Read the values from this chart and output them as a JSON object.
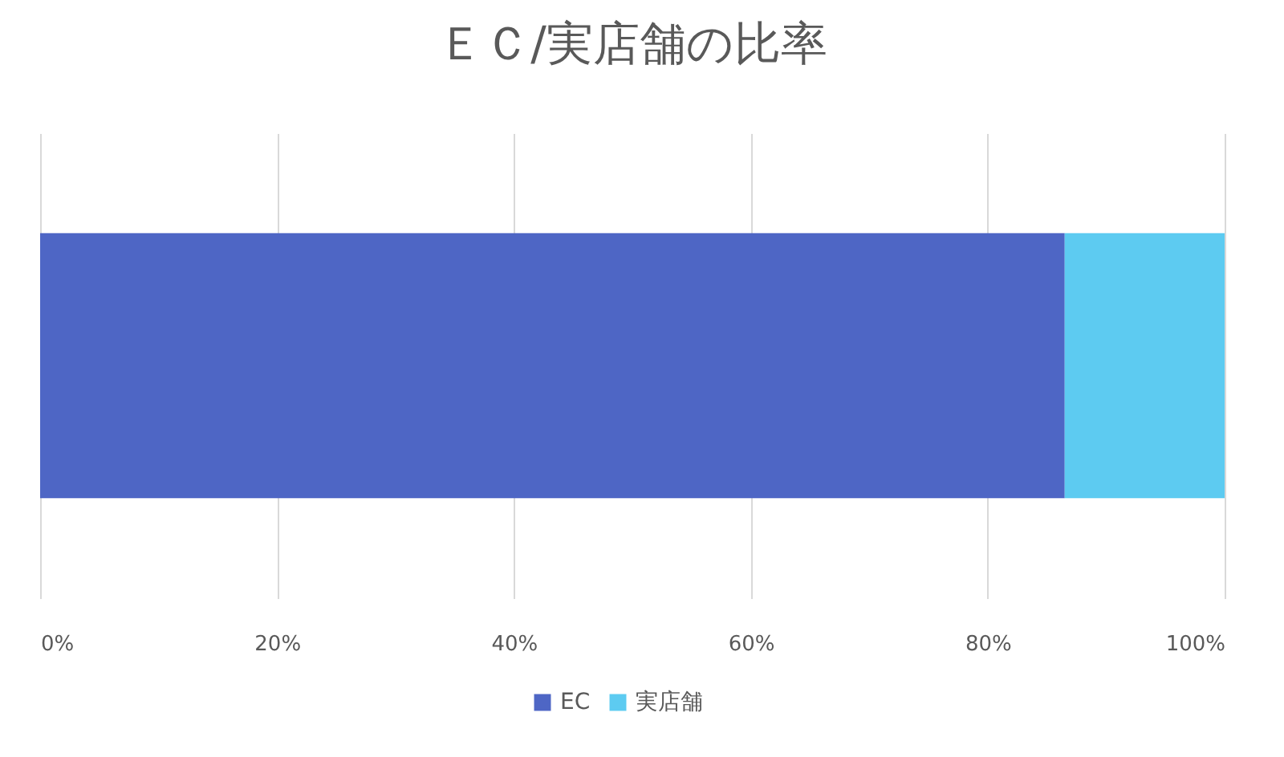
{
  "chart_data": {
    "type": "bar",
    "title": "ＥＣ/実店舗の比率",
    "orientation": "horizontal",
    "stacked": true,
    "categories": [
      null
    ],
    "series": [
      {
        "name": "EC",
        "color": "#4e66c5",
        "values": [
          86.5
        ]
      },
      {
        "name": "実店舗",
        "color": "#5dcbf1",
        "values": [
          13.5
        ]
      }
    ],
    "xlim": [
      0,
      100
    ],
    "xticks": [
      {
        "value": 0,
        "label": "0%"
      },
      {
        "value": 20,
        "label": "20%"
      },
      {
        "value": 40,
        "label": "40%"
      },
      {
        "value": 60,
        "label": "60%"
      },
      {
        "value": 80,
        "label": "80%"
      },
      {
        "value": 100,
        "label": "100%"
      }
    ],
    "grid": "x",
    "legend": "bottom"
  }
}
